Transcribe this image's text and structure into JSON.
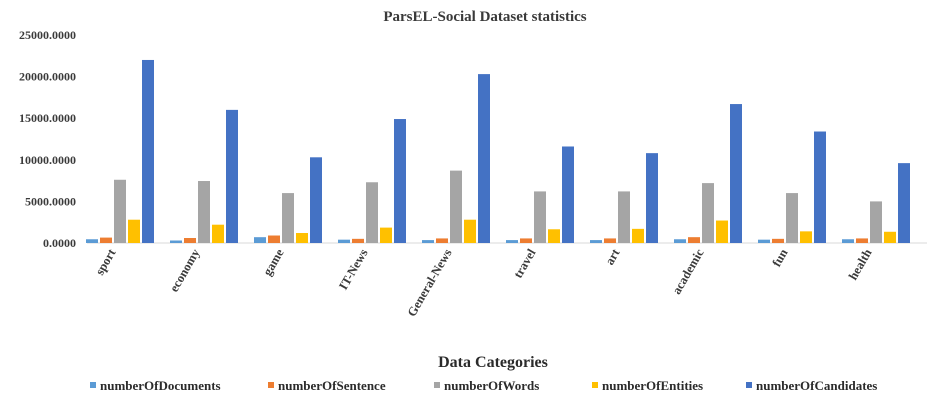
{
  "chart_data": {
    "type": "bar",
    "title": "ParsEL-Social Dataset statistics",
    "xlabel": "Data Categories",
    "ylabel": "",
    "ylim": [
      0,
      25000
    ],
    "yticks": [
      0,
      5000,
      10000,
      15000,
      20000,
      25000
    ],
    "ytick_labels": [
      "0.0000",
      "5000.0000",
      "10000.0000",
      "15000.0000",
      "20000.0000",
      "25000.0000"
    ],
    "grid": false,
    "legend_position": "bottom",
    "categories": [
      "sport",
      "economy",
      "game",
      "IT-News",
      "General-News",
      "travel",
      "art",
      "academic",
      "fun",
      "health"
    ],
    "series": [
      {
        "name": "numberOfDocuments",
        "color": "#5b9bd5",
        "values": [
          450,
          300,
          700,
          400,
          350,
          350,
          350,
          450,
          400,
          450
        ]
      },
      {
        "name": "numberOfSentence",
        "color": "#ed7d31",
        "values": [
          650,
          600,
          900,
          500,
          550,
          550,
          550,
          700,
          500,
          550
        ]
      },
      {
        "name": "numberOfWords",
        "color": "#a5a5a5",
        "values": [
          7600,
          7450,
          6000,
          7300,
          8700,
          6200,
          6200,
          7200,
          6000,
          5000
        ]
      },
      {
        "name": "numberOfEntities",
        "color": "#ffc000",
        "values": [
          2800,
          2200,
          1200,
          1850,
          2800,
          1650,
          1700,
          2700,
          1400,
          1350
        ]
      },
      {
        "name": "numberOfCandidates",
        "color": "#4472c4",
        "values": [
          22000,
          16000,
          10300,
          14900,
          20300,
          11600,
          10800,
          16700,
          13400,
          9600
        ]
      }
    ]
  }
}
